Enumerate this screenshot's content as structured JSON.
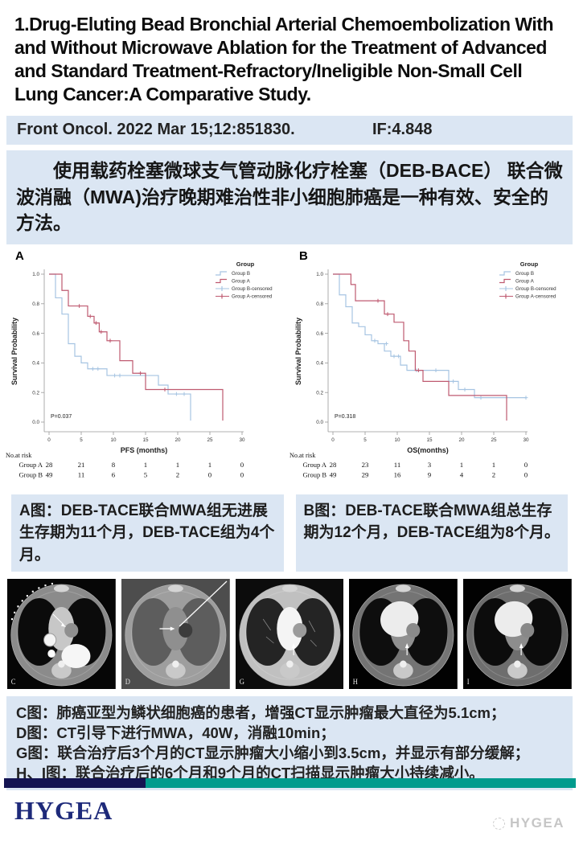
{
  "title": "1.Drug-Eluting Bead Bronchial Arterial Chemoembolization With and Without Microwave Ablation for the Treatment of Advanced and Standard Treatment-Refractory/Ineligible Non-Small Cell Lung Cancer:A Comparative Study.",
  "journal": {
    "citation": "Front Oncol. 2022 Mar 15;12:851830.",
    "impact_factor": "IF:4.848"
  },
  "summary_cn": "使用载药栓塞微球支气管动脉化疗栓塞（DEB-BACE） 联合微波消融（MWA)治疗晚期难治性非小细胞肺癌是一种有效、安全的方法。",
  "figure_captions": {
    "a": "A图：DEB-TACE联合MWA组无进展生存期为11个月，DEB-TACE组为4个月。",
    "b": "B图：DEB-TACE联合MWA组总生存期为12个月，DEB-TACE组为8个月。"
  },
  "ct_caption_lines": [
    "C图：肺癌亚型为鳞状细胞癌的患者，增强CT显示肿瘤最大直径为5.1cm；",
    "D图：CT引导下进行MWA，40W，消融10min；",
    "G图：联合治疗后3个月的CT显示肿瘤大小缩小到3.5cm，并显示有部分缓解；",
    "H、I图：联合治疗后的6个月和9个月的CT扫描显示肿瘤大小持续减小。"
  ],
  "footer": {
    "brand": "HYGEA",
    "watermark": "HYGEA"
  },
  "colors": {
    "box_blue": "#dbe6f3",
    "navy": "#141452",
    "teal": "#009b8d",
    "group_a_red": "#bf5a70",
    "group_b_blue": "#a6c4e2"
  },
  "chart_data": [
    {
      "type": "line",
      "panel": "A",
      "xlabel": "PFS (months)",
      "ylabel": "Survival Probability",
      "pvalue": "P=0.037",
      "xticks": [
        0,
        5,
        10,
        15,
        20,
        25,
        30
      ],
      "yticks": [
        0.0,
        0.2,
        0.4,
        0.6,
        0.8,
        1.0
      ],
      "xlim": [
        0,
        30
      ],
      "ylim": [
        0,
        1
      ],
      "legend_title": "Group",
      "legend": [
        {
          "label": "Group B",
          "color": "#a6c4e2",
          "censored": false
        },
        {
          "label": "Group A",
          "color": "#bf5a70",
          "censored": false
        },
        {
          "label": "Group B-censored",
          "color": "#a6c4e2",
          "censored": true
        },
        {
          "label": "Group A-censored",
          "color": "#bf5a70",
          "censored": true
        }
      ],
      "series": [
        {
          "name": "Group B",
          "color": "#a6c4e2",
          "steps": [
            [
              0,
              1
            ],
            [
              1,
              1
            ],
            [
              1,
              0.84
            ],
            [
              2,
              0.84
            ],
            [
              2,
              0.73
            ],
            [
              3,
              0.73
            ],
            [
              3,
              0.53
            ],
            [
              4,
              0.53
            ],
            [
              4,
              0.445
            ],
            [
              5,
              0.445
            ],
            [
              5,
              0.4
            ],
            [
              6,
              0.4
            ],
            [
              6,
              0.36
            ],
            [
              9,
              0.36
            ],
            [
              9,
              0.315
            ],
            [
              17,
              0.315
            ],
            [
              17,
              0.25
            ],
            [
              18.5,
              0.25
            ],
            [
              18.5,
              0.19
            ],
            [
              22,
              0.19
            ],
            [
              22,
              0.01
            ]
          ],
          "censors": [
            [
              6.8,
              0.36
            ],
            [
              7.6,
              0.36
            ],
            [
              10.2,
              0.315
            ],
            [
              11,
              0.315
            ],
            [
              19.8,
              0.19
            ],
            [
              21,
              0.19
            ]
          ]
        },
        {
          "name": "Group A",
          "color": "#bf5a70",
          "steps": [
            [
              0,
              1
            ],
            [
              2,
              1
            ],
            [
              2,
              0.89
            ],
            [
              3,
              0.89
            ],
            [
              3,
              0.785
            ],
            [
              6,
              0.785
            ],
            [
              6,
              0.715
            ],
            [
              7,
              0.715
            ],
            [
              7,
              0.67
            ],
            [
              7.8,
              0.67
            ],
            [
              7.8,
              0.61
            ],
            [
              9,
              0.61
            ],
            [
              9,
              0.55
            ],
            [
              11,
              0.55
            ],
            [
              11,
              0.415
            ],
            [
              13,
              0.415
            ],
            [
              13,
              0.33
            ],
            [
              15,
              0.33
            ],
            [
              15,
              0.22
            ],
            [
              27,
              0.22
            ],
            [
              27,
              0.01
            ]
          ],
          "censors": [
            [
              4.7,
              0.785
            ],
            [
              6.4,
              0.715
            ],
            [
              7.3,
              0.67
            ],
            [
              8.1,
              0.61
            ],
            [
              9.5,
              0.55
            ],
            [
              14.2,
              0.33
            ],
            [
              18,
              0.22
            ]
          ]
        }
      ],
      "risk_table": {
        "title": "No.at risk",
        "rows": [
          {
            "label": "Group A",
            "values": [
              28,
              21,
              8,
              1,
              1,
              1,
              0
            ]
          },
          {
            "label": "Group B",
            "values": [
              49,
              11,
              6,
              5,
              2,
              0,
              0
            ]
          }
        ]
      }
    },
    {
      "type": "line",
      "panel": "B",
      "xlabel": "OS(months)",
      "ylabel": "Survival Probability",
      "pvalue": "P=0.318",
      "xticks": [
        0,
        5,
        10,
        15,
        20,
        25,
        30
      ],
      "yticks": [
        0.0,
        0.2,
        0.4,
        0.6,
        0.8,
        1.0
      ],
      "xlim": [
        0,
        30
      ],
      "ylim": [
        0,
        1
      ],
      "legend_title": "Group",
      "legend": [
        {
          "label": "Group B",
          "color": "#a6c4e2",
          "censored": false
        },
        {
          "label": "Group A",
          "color": "#bf5a70",
          "censored": false
        },
        {
          "label": "Group B-censored",
          "color": "#a6c4e2",
          "censored": true
        },
        {
          "label": "Group A-censored",
          "color": "#bf5a70",
          "censored": true
        }
      ],
      "series": [
        {
          "name": "Group B",
          "color": "#a6c4e2",
          "steps": [
            [
              0,
              1
            ],
            [
              1,
              1
            ],
            [
              1,
              0.86
            ],
            [
              2,
              0.86
            ],
            [
              2,
              0.78
            ],
            [
              3,
              0.78
            ],
            [
              3,
              0.67
            ],
            [
              4,
              0.67
            ],
            [
              4,
              0.645
            ],
            [
              5,
              0.645
            ],
            [
              5,
              0.59
            ],
            [
              6,
              0.59
            ],
            [
              6,
              0.55
            ],
            [
              7,
              0.55
            ],
            [
              7,
              0.53
            ],
            [
              8,
              0.53
            ],
            [
              8,
              0.48
            ],
            [
              9,
              0.48
            ],
            [
              9,
              0.445
            ],
            [
              10.5,
              0.445
            ],
            [
              10.5,
              0.385
            ],
            [
              11.5,
              0.385
            ],
            [
              11.5,
              0.35
            ],
            [
              18,
              0.35
            ],
            [
              18,
              0.275
            ],
            [
              19.5,
              0.275
            ],
            [
              19.5,
              0.22
            ],
            [
              22,
              0.22
            ],
            [
              22,
              0.165
            ],
            [
              30,
              0.165
            ]
          ],
          "censors": [
            [
              6.5,
              0.55
            ],
            [
              8.3,
              0.53
            ],
            [
              9.5,
              0.445
            ],
            [
              10.2,
              0.445
            ],
            [
              13,
              0.35
            ],
            [
              16,
              0.35
            ],
            [
              18.7,
              0.275
            ],
            [
              20.5,
              0.22
            ],
            [
              23,
              0.165
            ],
            [
              30,
              0.165
            ]
          ]
        },
        {
          "name": "Group A",
          "color": "#bf5a70",
          "steps": [
            [
              0,
              1
            ],
            [
              2.8,
              1
            ],
            [
              2.8,
              0.93
            ],
            [
              3.5,
              0.93
            ],
            [
              3.5,
              0.82
            ],
            [
              8,
              0.82
            ],
            [
              8,
              0.73
            ],
            [
              9.5,
              0.73
            ],
            [
              9.5,
              0.675
            ],
            [
              11,
              0.675
            ],
            [
              11,
              0.55
            ],
            [
              11.8,
              0.55
            ],
            [
              11.8,
              0.48
            ],
            [
              12.8,
              0.48
            ],
            [
              12.8,
              0.35
            ],
            [
              14,
              0.35
            ],
            [
              14,
              0.275
            ],
            [
              18,
              0.275
            ],
            [
              18,
              0.18
            ],
            [
              27,
              0.18
            ],
            [
              27,
              0.01
            ]
          ],
          "censors": [
            [
              7,
              0.82
            ],
            [
              8.5,
              0.73
            ],
            [
              13.3,
              0.35
            ]
          ]
        }
      ],
      "risk_table": {
        "title": "No.at risk",
        "rows": [
          {
            "label": "Group A",
            "values": [
              28,
              23,
              11,
              3,
              1,
              1,
              0
            ]
          },
          {
            "label": "Group B",
            "values": [
              49,
              29,
              16,
              9,
              4,
              2,
              0
            ]
          }
        ]
      }
    }
  ],
  "ct_images": [
    {
      "label": "C",
      "window": "contrast",
      "bg": "#060606",
      "body": "#8b8b8b",
      "lung": "#0b0b0b",
      "medi": "#c7c7c7",
      "tumor": "#8f8f8f",
      "features": [
        "rib-markers",
        "bright-vessels",
        "arrow"
      ]
    },
    {
      "label": "D",
      "window": "ablation",
      "bg": "#4d4d4d",
      "body": "#9e9e9e",
      "lung": "#5d5d5d",
      "medi": "#8f8f8f",
      "tumor": "#3c3c3c",
      "features": [
        "needle",
        "arrow"
      ]
    },
    {
      "label": "G",
      "window": "lung",
      "bg": "#0c0c0c",
      "body": "#c0c0c0",
      "lung": "#242424",
      "medi": "#f4f4f4",
      "tumor": "#9b9b9b",
      "features": [
        "vessels",
        "arrow"
      ]
    },
    {
      "label": "H",
      "window": "mediastinal",
      "bg": "#020202",
      "body": "#747474",
      "lung": "#0e0e0e",
      "medi": "#909090",
      "tumor": "#8a8a8a",
      "features": [
        "bright-heart",
        "arrow"
      ]
    },
    {
      "label": "I",
      "window": "mediastinal",
      "bg": "#020202",
      "body": "#6e6e6e",
      "lung": "#0c0c0c",
      "medi": "#8d8d8d",
      "tumor": "#888888",
      "features": [
        "bright-heart",
        "arrow"
      ]
    }
  ]
}
